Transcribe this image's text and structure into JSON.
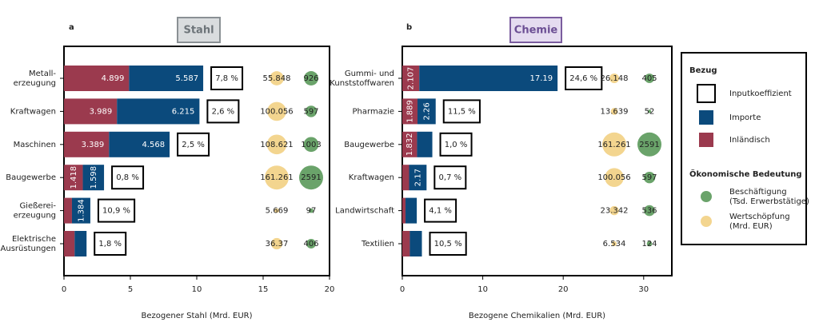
{
  "chart_data": [
    {
      "type": "bar",
      "panel": "a",
      "title": "Stahl",
      "xlabel": "Bezogener Stahl (Mrd. EUR)",
      "categories": [
        [
          "Metall-",
          "erzeugung"
        ],
        [
          "Kraftwagen"
        ],
        [
          "Maschinen"
        ],
        [
          "Baugewerbe"
        ],
        [
          "Gießerei-",
          "erzeugung"
        ],
        [
          "Elektrische",
          "Ausrüstungen"
        ]
      ],
      "series": [
        {
          "name": "Inländisch",
          "color": "#9b3a4e",
          "values": [
            4.899,
            3.989,
            3.389,
            1.418,
            0.6,
            0.8
          ],
          "value_labels": [
            "4.899",
            "3.989",
            "3.389",
            "1.418",
            null,
            null
          ]
        },
        {
          "name": "Importe",
          "color": "#0b4a7c",
          "values": [
            5.587,
            6.215,
            4.568,
            1.598,
            1.384,
            0.9
          ],
          "value_labels": [
            "5.587",
            "6.215",
            "4.568",
            "1.598",
            "1.384",
            null
          ]
        }
      ],
      "inputkoeffizient": {
        "name": "Inputkoeffizient",
        "values": [
          7.8,
          2.6,
          2.5,
          0.8,
          10.9,
          1.8
        ],
        "value_labels": [
          "7,8 %",
          "2,6 %",
          "2,5 %",
          "0,8 %",
          "10,9 %",
          "1,8 %"
        ]
      },
      "wertschoepfung": {
        "name": [
          "Wertschöpfung",
          "(Mrd. EUR)"
        ],
        "color": "#f3d58f",
        "values": [
          55.848,
          100.056,
          108.621,
          161.261,
          5.669,
          36.37
        ]
      },
      "beschaeftigung": {
        "name": [
          "Beschäftigung",
          "(Tsd. Erwerbstätige)"
        ],
        "color": "#6aa36a",
        "values": [
          926,
          597,
          1003,
          2591,
          97,
          406
        ]
      },
      "xlim": [
        0,
        20
      ],
      "xticks": [
        0,
        5,
        10,
        15,
        20
      ]
    },
    {
      "type": "bar",
      "panel": "b",
      "title": "Chemie",
      "xlabel": "Bezogene Chemikalien (Mrd. EUR)",
      "categories": [
        [
          "Gummi- und",
          "Kunststoffwaren"
        ],
        [
          "Pharmazie"
        ],
        [
          "Baugewerbe"
        ],
        [
          "Kraftwagen"
        ],
        [
          "Landwirtschaft"
        ],
        [
          "Textilien"
        ]
      ],
      "series": [
        {
          "color": "#9b3a4e",
          "values": [
            2.107,
            1.889,
            1.832,
            0.845,
            0.4,
            0.936
          ],
          "value_labels": [
            "2.107",
            "1.889",
            "1.832",
            null,
            null,
            null
          ]
        },
        {
          "color": "#0b4a7c",
          "values": [
            17.19,
            2.26,
            1.9,
            2.17,
            1.4,
            1.5
          ],
          "value_labels": [
            "17.19",
            "2.26",
            null,
            "2.17",
            null,
            null
          ]
        }
      ],
      "inputkoeffizient": {
        "values": [
          24.6,
          11.5,
          1.0,
          0.7,
          4.1,
          10.5
        ],
        "value_labels": [
          "24,6 %",
          "11,5 %",
          "1,0 %",
          "0,7 %",
          "4,1 %",
          "10,5 %"
        ]
      },
      "wertschoepfung": {
        "color": "#f3d58f",
        "values": [
          26.148,
          13.639,
          161.261,
          100.056,
          23.342,
          6.534
        ]
      },
      "beschaeftigung": {
        "color": "#6aa36a",
        "values": [
          405,
          52,
          2591,
          597,
          536,
          124
        ]
      },
      "xlim": [
        0,
        33.5
      ],
      "xticks": [
        0,
        10,
        20,
        30
      ]
    }
  ],
  "legend": {
    "title": "Bezug",
    "section_title": "Ökonomische Bedeutung"
  }
}
